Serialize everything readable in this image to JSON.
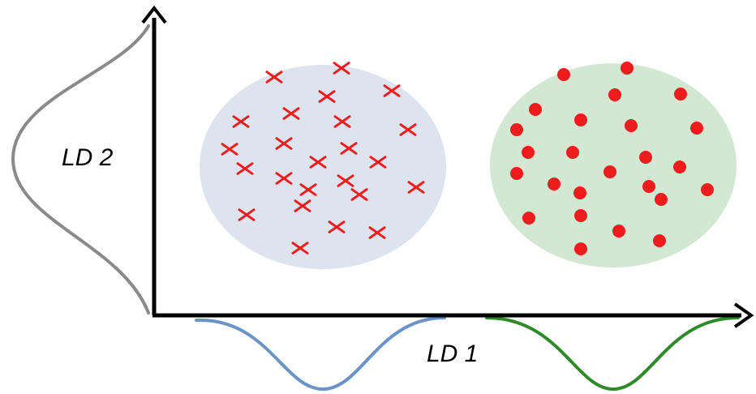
{
  "labels": {
    "ld1": "LD 1",
    "ld2": "LD 2"
  },
  "colors": {
    "axis": "#000000",
    "class_a_region": "#dde3ef",
    "class_b_region": "#d3e8d2",
    "marker": "#ee1c1c",
    "ld2_distribution": "#8a8a8a",
    "ld1_distribution_a": "#6a93c8",
    "ld1_distribution_b": "#2f8a2a"
  },
  "classes": [
    {
      "name": "",
      "marker": "cross",
      "count": 30
    },
    {
      "name": "",
      "marker": "dot",
      "count": 29
    }
  ]
}
